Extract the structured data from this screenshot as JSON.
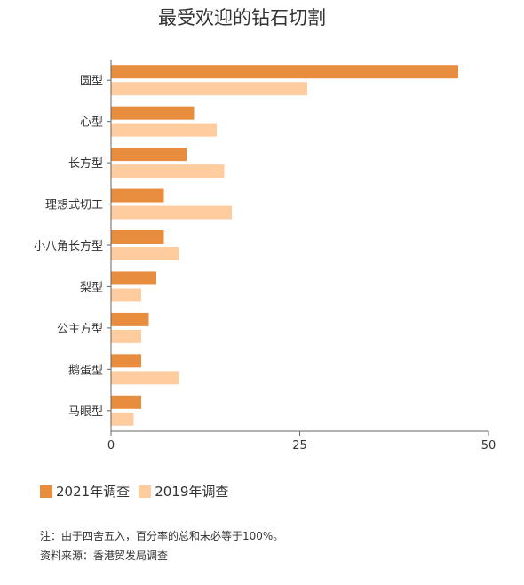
{
  "chart_data": {
    "type": "bar",
    "orientation": "horizontal",
    "title": "最受欢迎的钻石切割",
    "categories": [
      "圆型",
      "心型",
      "长方型",
      "理想式切工",
      "小八角长方型",
      "梨型",
      "公主方型",
      "鹅蛋型",
      "马眼型"
    ],
    "series": [
      {
        "name": "2021年调查",
        "color": "#E88D3E",
        "values": [
          46,
          11,
          10,
          7,
          7,
          6,
          5,
          4,
          4
        ]
      },
      {
        "name": "2019年调查",
        "color": "#FFCCA0",
        "values": [
          26,
          14,
          15,
          16,
          9,
          4,
          4,
          9,
          3
        ]
      }
    ],
    "xlim": [
      0,
      50
    ],
    "xticks": [
      "0",
      "25",
      "50"
    ],
    "xlabel": "",
    "ylabel": "",
    "legend_position": "bottom-left",
    "grid": false
  },
  "notes": {
    "note": "注：由于四舍五入，百分率的总和未必等于100%。",
    "source": "资料来源：香港贸发局调查"
  }
}
